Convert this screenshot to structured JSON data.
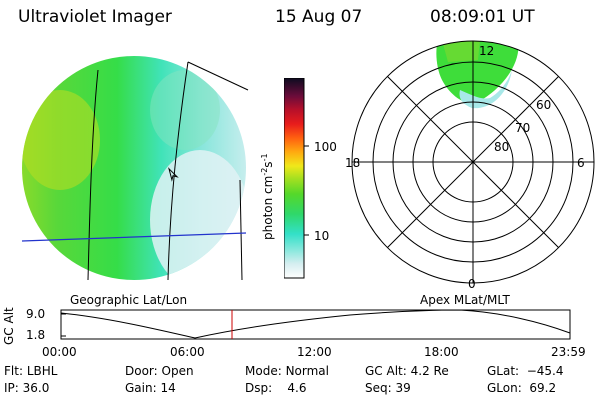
{
  "header": {
    "title": "Ultraviolet Imager",
    "date": "15 Aug 07",
    "time": "08:09:01 UT"
  },
  "colorbar": {
    "unit_prefix": "photon cm",
    "unit_exp1": "-2",
    "unit_mid": "s",
    "unit_exp2": "-1",
    "ticks": [
      "100",
      "10"
    ]
  },
  "polar_plot": {
    "mlt_labels": [
      "12",
      "18",
      "6",
      "0"
    ],
    "mlat_labels": [
      "60",
      "70",
      "80"
    ]
  },
  "panel_labels": {
    "left": "Geographic Lat/Lon",
    "right": "Apex MLat/MLT"
  },
  "altitude_plot": {
    "ylabel": "GC Alt",
    "y_ticks": [
      "9.0",
      "1.8"
    ],
    "x_ticks": [
      "00:00",
      "06:00",
      "12:00",
      "18:00",
      "23:59"
    ],
    "marker_color": "#cc0000"
  },
  "info": {
    "flt_label": "Flt:",
    "flt_value": "LBHL",
    "ip_label": "IP:",
    "ip_value": "36.0",
    "door_label": "Door:",
    "door_value": "Open",
    "gain_label": "Gain:",
    "gain_value": "14",
    "mode_label": "Mode:",
    "mode_value": "Normal",
    "dsp_label": "Dsp:",
    "dsp_value": "4.6",
    "gcalt_label": "GC Alt:",
    "gcalt_value": "4.2 Re",
    "seq_label": "Seq:",
    "seq_value": "39",
    "glat_label": "GLat:",
    "glat_value": "−45.4",
    "glon_label": "GLon:",
    "glon_value": "69.2"
  },
  "colors": {
    "aurora_green": "#33dd44",
    "aurora_cyan": "#44e8cc",
    "aurora_lightcyan": "#cdeef0",
    "aurora_lime": "#99dd22",
    "equator_line": "#2233cc",
    "marker": "#cc0000"
  }
}
